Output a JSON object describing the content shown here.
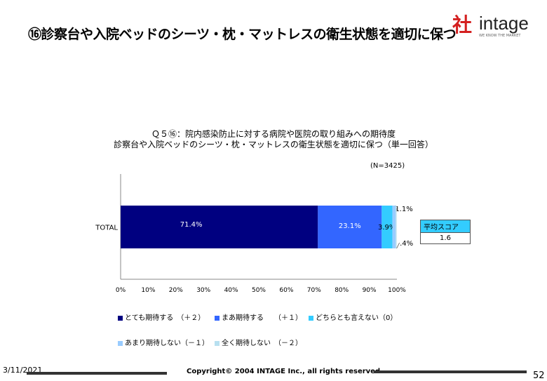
{
  "slide": {
    "title": "⑯診察台や入院ベッドのシーツ・枕・マットレスの衛生状態を適切に保つ",
    "logo_text": "intage",
    "logo_mark": "社",
    "logo_sub": "WE KNOW THE MARKET",
    "question_line1": "Ｑ５⑯：院内感染防止に対する病院や医院の取り組みへの期待度",
    "question_line2": "診察台や入院ベッドのシーツ・枕・マットレスの衛生状態を適切に保つ（単一回答）",
    "n_label": "(N=3425)",
    "score_label": "平均スコア",
    "score_value": "1.6"
  },
  "footer": {
    "date": "3/11/2021",
    "copyright": "Copyright© 2004 INTAGE Inc., all rights reserved.",
    "page": "52"
  },
  "chart_data": {
    "type": "bar",
    "orientation": "horizontal",
    "stacked": true,
    "categories": [
      "TOTAL"
    ],
    "series": [
      {
        "name": "とても期待する　（＋２）",
        "values": [
          71.4
        ],
        "label": "71.4%",
        "color": "#000080"
      },
      {
        "name": "まあ期待する　　（＋１）",
        "values": [
          23.1
        ],
        "label": "23.1%",
        "color": "#3366ff"
      },
      {
        "name": "どちらとも言えない（0）",
        "values": [
          3.9
        ],
        "label": "3.9%",
        "color": "#33ccff"
      },
      {
        "name": "あまり期待しない（－１）",
        "values": [
          1.1
        ],
        "label": "1.1%",
        "color": "#99ccff"
      },
      {
        "name": "全く期待しない　（－２）",
        "values": [
          0.4
        ],
        "label": ".4%",
        "color": "#b8e0f0"
      }
    ],
    "xlim": [
      0,
      100
    ],
    "xticks": [
      "0%",
      "10%",
      "20%",
      "30%",
      "40%",
      "50%",
      "60%",
      "70%",
      "80%",
      "90%",
      "100%"
    ],
    "colors": {
      "outline": "#555555"
    }
  }
}
